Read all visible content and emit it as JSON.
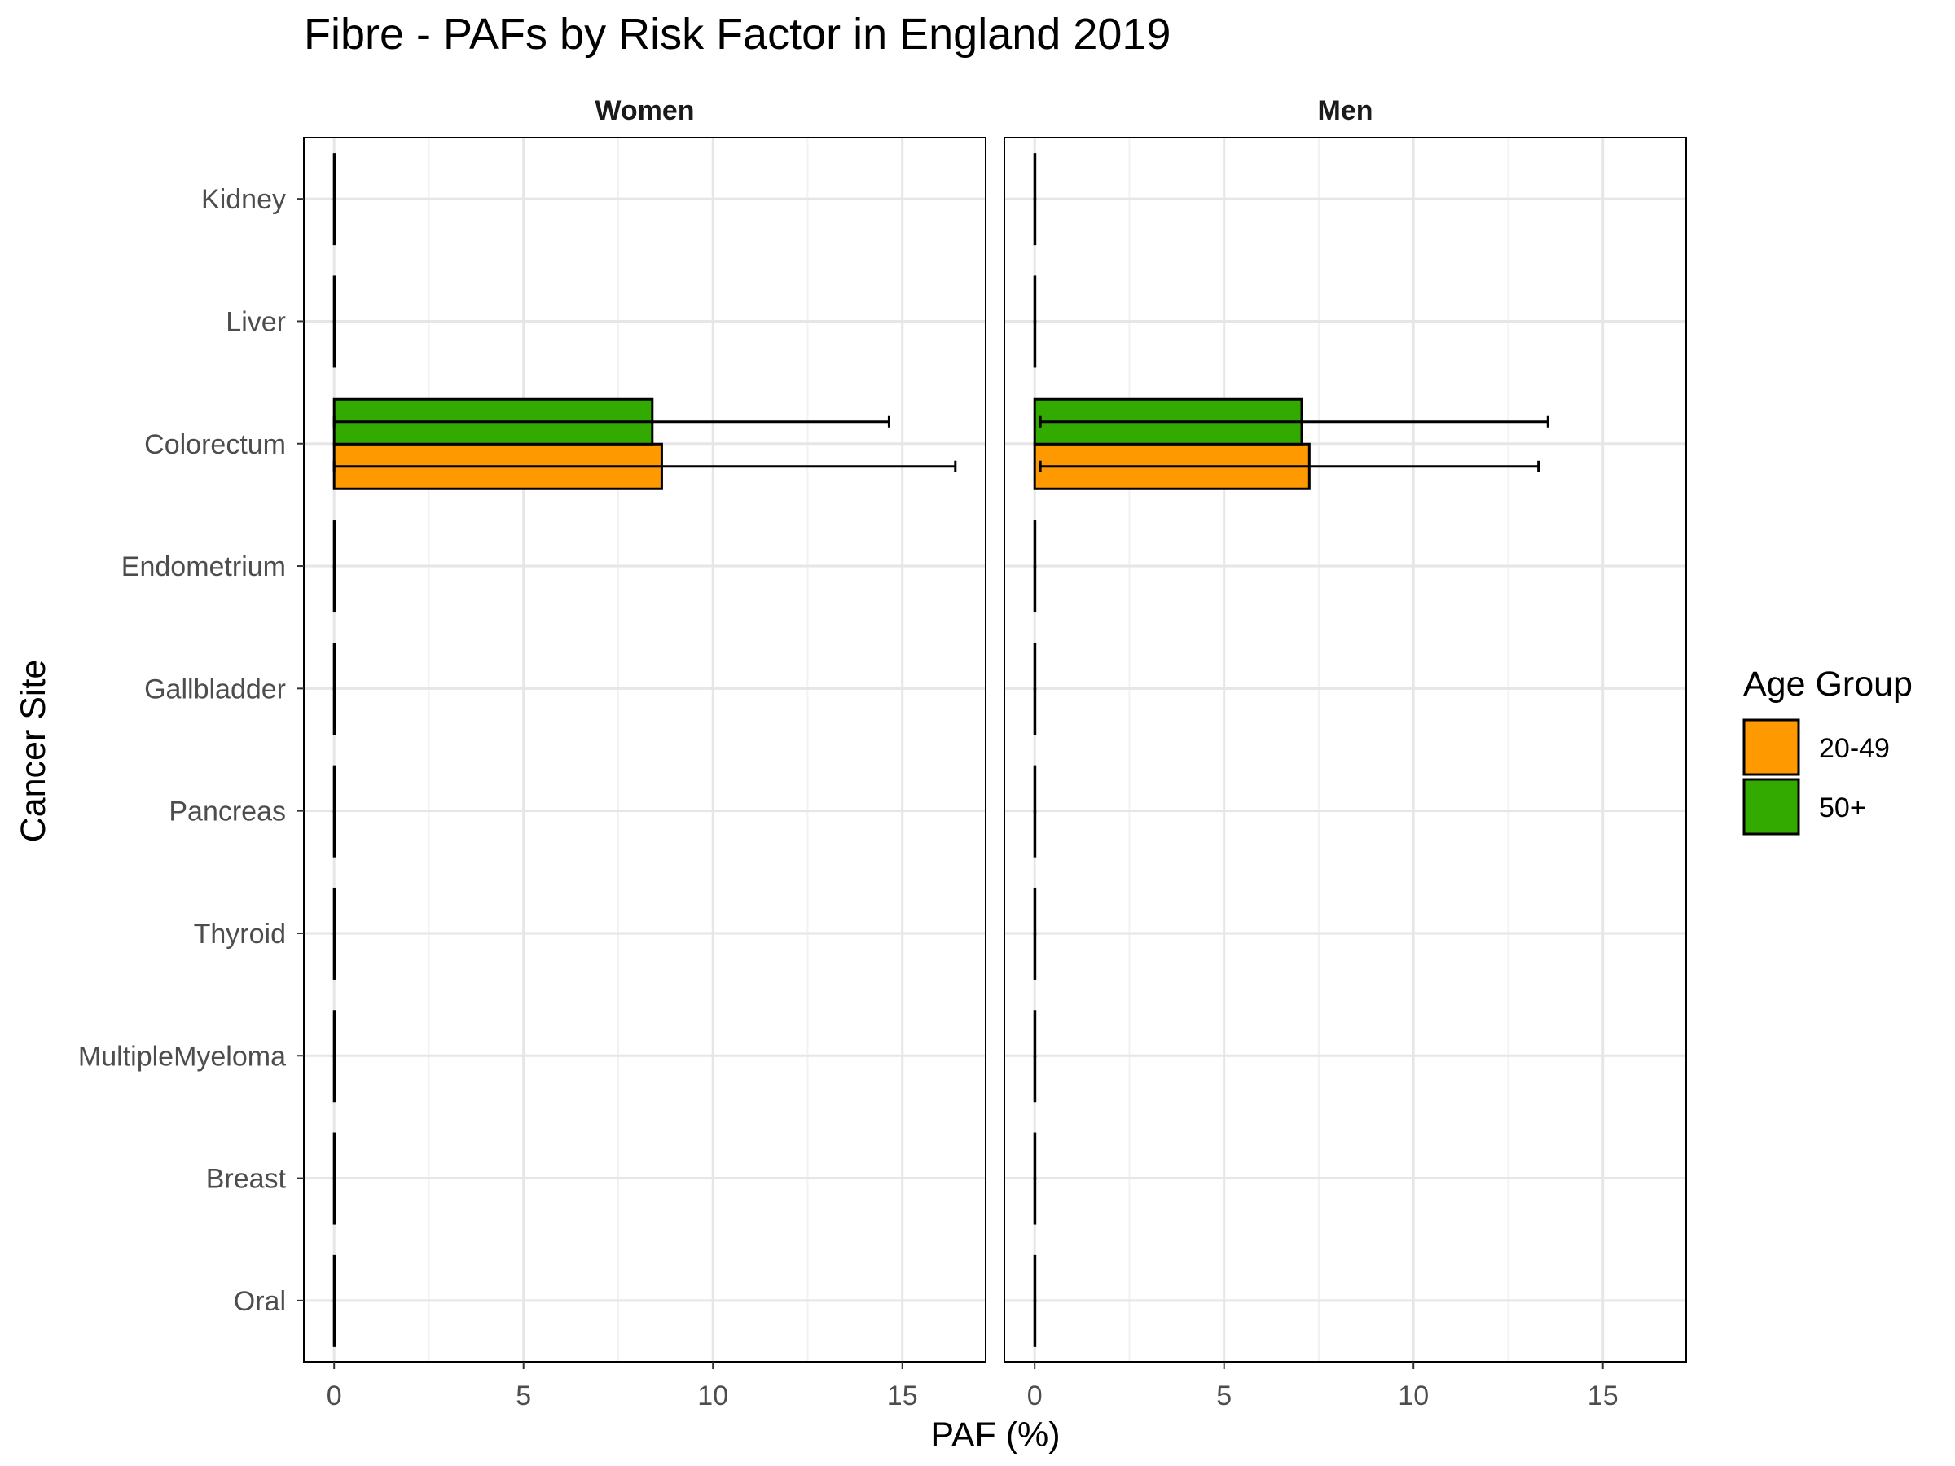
{
  "chart_data": {
    "type": "bar",
    "title": "Fibre  - PAFs by Risk Factor in England 2019",
    "xlabel": "PAF (%)",
    "ylabel": "Cancer Site",
    "xlim": [
      -0.8,
      17.2
    ],
    "xticks": [
      0,
      5,
      10,
      15
    ],
    "grid": true,
    "legend_position": "right",
    "legend_title": "Age Group",
    "categories": [
      "Kidney",
      "Liver",
      "Colorectum",
      "Endometrium",
      "Gallbladder",
      "Pancreas",
      "Thyroid",
      "MultipleMyeloma",
      "Breast",
      "Oral"
    ],
    "series": [
      {
        "name": "20-49",
        "color": "#FF9900"
      },
      {
        "name": "50+",
        "color": "#33AA00"
      }
    ],
    "panels": [
      {
        "name": "Women",
        "values": {
          "20-49": [
            0,
            0,
            8.65,
            0,
            0,
            0,
            0,
            0,
            0,
            0
          ],
          "50+": [
            0,
            0,
            8.4,
            0,
            0,
            0,
            0,
            0,
            0,
            0
          ]
        },
        "ci_low": {
          "20-49": [
            0,
            0,
            0,
            0,
            0,
            0,
            0,
            0,
            0,
            0
          ],
          "50+": [
            0,
            0,
            0,
            0,
            0,
            0,
            0,
            0,
            0,
            0
          ]
        },
        "ci_high": {
          "20-49": [
            0,
            0,
            16.4,
            0,
            0,
            0,
            0,
            0,
            0,
            0
          ],
          "50+": [
            0,
            0,
            14.65,
            0,
            0,
            0,
            0,
            0,
            0,
            0
          ]
        }
      },
      {
        "name": "Men",
        "values": {
          "20-49": [
            0,
            0,
            7.25,
            0,
            0,
            0,
            0,
            0,
            0,
            0
          ],
          "50+": [
            0,
            0,
            7.05,
            0,
            0,
            0,
            0,
            0,
            0,
            0
          ]
        },
        "ci_low": {
          "20-49": [
            0,
            0,
            0.15,
            0,
            0,
            0,
            0,
            0,
            0,
            0
          ],
          "50+": [
            0,
            0,
            0.15,
            0,
            0,
            0,
            0,
            0,
            0,
            0
          ]
        },
        "ci_high": {
          "20-49": [
            0,
            0,
            13.3,
            0,
            0,
            0,
            0,
            0,
            0,
            0
          ],
          "50+": [
            0,
            0,
            13.55,
            0,
            0,
            0,
            0,
            0,
            0,
            0
          ]
        }
      }
    ]
  }
}
